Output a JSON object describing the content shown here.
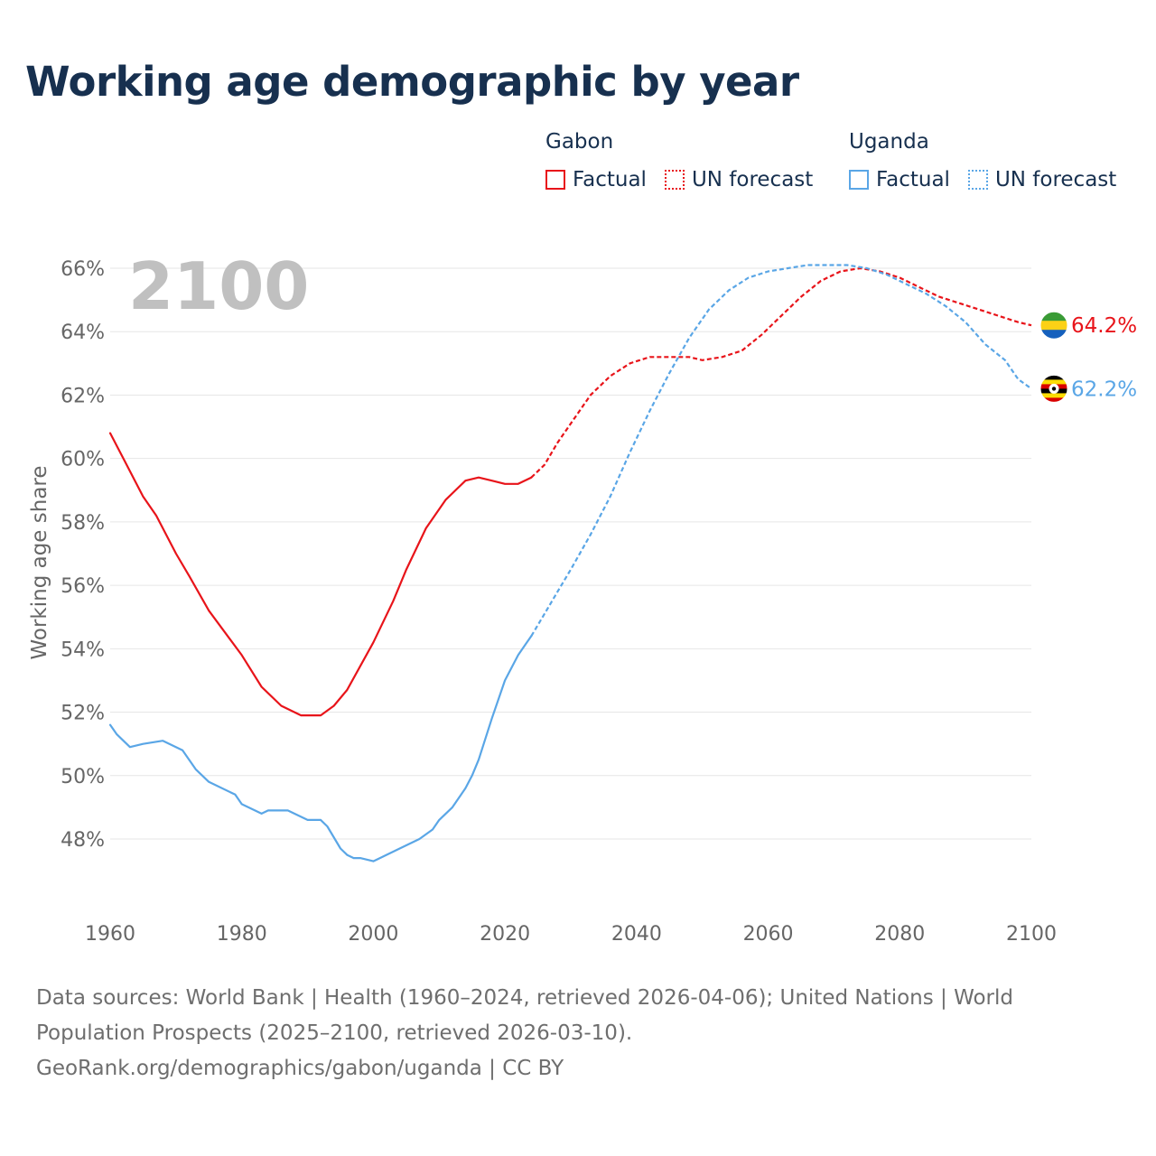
{
  "title": "Working age demographic by year",
  "legend": {
    "groups": [
      {
        "name": "Gabon",
        "color": "#e8141a",
        "factual_label": "Factual",
        "forecast_label": "UN forecast"
      },
      {
        "name": "Uganda",
        "color": "#5aa6e6",
        "factual_label": "Factual",
        "forecast_label": "UN forecast"
      }
    ]
  },
  "year_label": "2100",
  "sources": {
    "line1": "Data sources: World Bank | Health (1960–2024, retrieved 2026-04-06); United Nations | World",
    "line2": "Population Prospects (2025–2100, retrieved 2026-03-10).",
    "line3": "GeoRank.org/demographics/gabon/uganda | CC BY"
  },
  "chart_data": {
    "type": "line",
    "title": "Working age demographic by year",
    "xlabel": "",
    "ylabel": "Working age share",
    "xlim": [
      1960,
      2100
    ],
    "ylim": [
      46,
      67
    ],
    "x_ticks": [
      1960,
      1980,
      2000,
      2020,
      2040,
      2060,
      2080,
      2100
    ],
    "y_ticks": [
      48,
      50,
      52,
      54,
      56,
      58,
      60,
      62,
      64,
      66
    ],
    "y_tick_labels": [
      "48%",
      "50%",
      "52%",
      "54%",
      "56%",
      "58%",
      "60%",
      "62%",
      "64%",
      "66%"
    ],
    "grid": "horizontal",
    "series": [
      {
        "name": "Gabon",
        "color": "#e8141a",
        "flag": [
          "#3a9b35",
          "#fcd116",
          "#1560bd"
        ],
        "end_label": "64.2%",
        "factual": {
          "x": [
            1960,
            1963,
            1965,
            1967,
            1970,
            1972,
            1975,
            1980,
            1983,
            1986,
            1989,
            1992,
            1994,
            1996,
            2000,
            2003,
            2005,
            2008,
            2011,
            2014,
            2016,
            2018,
            2020,
            2022,
            2024
          ],
          "y": [
            60.8,
            59.6,
            58.8,
            58.2,
            57.0,
            56.3,
            55.2,
            53.8,
            52.8,
            52.2,
            51.9,
            51.9,
            52.2,
            52.7,
            54.2,
            55.5,
            56.5,
            57.8,
            58.7,
            59.3,
            59.4,
            59.3,
            59.2,
            59.2,
            59.4
          ]
        },
        "forecast": {
          "x": [
            2024,
            2026,
            2028,
            2030,
            2033,
            2036,
            2039,
            2042,
            2045,
            2048,
            2050,
            2053,
            2056,
            2059,
            2062,
            2065,
            2068,
            2071,
            2074,
            2077,
            2080,
            2083,
            2086,
            2089,
            2092,
            2095,
            2098,
            2100
          ],
          "y": [
            59.4,
            59.8,
            60.5,
            61.1,
            62.0,
            62.6,
            63.0,
            63.2,
            63.2,
            63.2,
            63.1,
            63.2,
            63.4,
            63.9,
            64.5,
            65.1,
            65.6,
            65.9,
            66.0,
            65.9,
            65.7,
            65.4,
            65.1,
            64.9,
            64.7,
            64.5,
            64.3,
            64.2
          ]
        }
      },
      {
        "name": "Uganda",
        "color": "#5aa6e6",
        "flag": [
          "#000000",
          "#fcdc04",
          "#d90000"
        ],
        "end_label": "62.2%",
        "factual": {
          "x": [
            1960,
            1961,
            1963,
            1965,
            1968,
            1971,
            1973,
            1975,
            1979,
            1980,
            1983,
            1984,
            1987,
            1988,
            1990,
            1992,
            1993,
            1995,
            1996,
            1997,
            1998,
            2000,
            2001,
            2004,
            2007,
            2009,
            2010,
            2012,
            2014,
            2015,
            2016,
            2018,
            2020,
            2022,
            2023,
            2024
          ],
          "y": [
            51.6,
            51.3,
            50.9,
            51.0,
            51.1,
            50.8,
            50.2,
            49.8,
            49.4,
            49.1,
            48.8,
            48.9,
            48.9,
            48.8,
            48.6,
            48.6,
            48.4,
            47.7,
            47.5,
            47.4,
            47.4,
            47.3,
            47.4,
            47.7,
            48.0,
            48.3,
            48.6,
            49.0,
            49.6,
            50.0,
            50.5,
            51.8,
            53.0,
            53.8,
            54.1,
            54.4
          ]
        },
        "forecast": {
          "x": [
            2024,
            2026,
            2028,
            2030,
            2033,
            2036,
            2039,
            2042,
            2045,
            2048,
            2051,
            2054,
            2057,
            2060,
            2063,
            2066,
            2069,
            2072,
            2075,
            2078,
            2081,
            2084,
            2087,
            2090,
            2093,
            2096,
            2098,
            2100
          ],
          "y": [
            54.4,
            55.1,
            55.8,
            56.5,
            57.6,
            58.8,
            60.2,
            61.5,
            62.7,
            63.8,
            64.7,
            65.3,
            65.7,
            65.9,
            66.0,
            66.1,
            66.1,
            66.1,
            66.0,
            65.8,
            65.5,
            65.2,
            64.8,
            64.3,
            63.6,
            63.1,
            62.5,
            62.2
          ]
        }
      }
    ]
  }
}
